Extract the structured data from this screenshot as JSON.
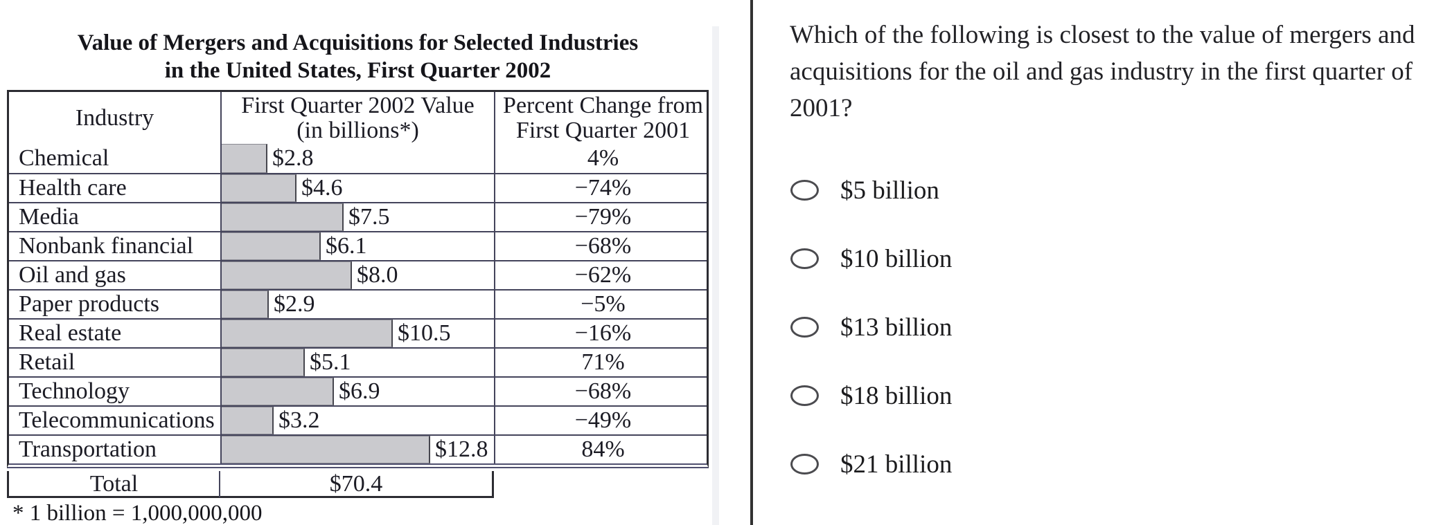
{
  "figure": {
    "title_line1": "Value of Mergers and Acquisitions for Selected Industries",
    "title_line2": "in the United States, First Quarter 2002",
    "table": {
      "header": {
        "industry": "Industry",
        "value_line1": "First Quarter 2002 Value",
        "value_line2": "(in billions*)",
        "change_line1": "Percent Change from",
        "change_line2": "First Quarter 2001"
      },
      "rows": [
        {
          "industry": "Chemical",
          "value_label": "$2.8",
          "value": 2.8,
          "pct_change": "4%"
        },
        {
          "industry": "Health care",
          "value_label": "$4.6",
          "value": 4.6,
          "pct_change": "−74%"
        },
        {
          "industry": "Media",
          "value_label": "$7.5",
          "value": 7.5,
          "pct_change": "−79%"
        },
        {
          "industry": "Nonbank financial",
          "value_label": "$6.1",
          "value": 6.1,
          "pct_change": "−68%"
        },
        {
          "industry": "Oil and gas",
          "value_label": "$8.0",
          "value": 8.0,
          "pct_change": "−62%"
        },
        {
          "industry": "Paper products",
          "value_label": "$2.9",
          "value": 2.9,
          "pct_change": "−5%"
        },
        {
          "industry": "Real estate",
          "value_label": "$10.5",
          "value": 10.5,
          "pct_change": "−16%"
        },
        {
          "industry": "Retail",
          "value_label": "$5.1",
          "value": 5.1,
          "pct_change": "71%"
        },
        {
          "industry": "Technology",
          "value_label": "$6.9",
          "value": 6.9,
          "pct_change": "−68%"
        },
        {
          "industry": "Telecommunications",
          "value_label": "$3.2",
          "value": 3.2,
          "pct_change": "−49%"
        },
        {
          "industry": "Transportation",
          "value_label": "$12.8",
          "value": 12.8,
          "pct_change": "84%"
        }
      ],
      "total_label": "Total",
      "total_value": "$70.4"
    },
    "footnote": "* 1 billion = 1,000,000,000"
  },
  "chart_data": {
    "type": "table",
    "title": "Value of Mergers and Acquisitions for Selected Industries in the United States, First Quarter 2002",
    "categories": [
      "Chemical",
      "Health care",
      "Media",
      "Nonbank financial",
      "Oil and gas",
      "Paper products",
      "Real estate",
      "Retail",
      "Technology",
      "Telecommunications",
      "Transportation"
    ],
    "series": [
      {
        "name": "First Quarter 2002 Value (in billions*)",
        "values": [
          2.8,
          4.6,
          7.5,
          6.1,
          8.0,
          2.9,
          10.5,
          5.1,
          6.9,
          3.2,
          12.8
        ]
      },
      {
        "name": "Percent Change from First Quarter 2001",
        "values": [
          4,
          -74,
          -79,
          -68,
          -62,
          -5,
          -16,
          71,
          -68,
          -49,
          84
        ]
      }
    ],
    "total_value_billions": 70.4,
    "footnote": "* 1 billion = 1,000,000,000",
    "bars": {
      "embedded_in_column": "First Quarter 2002 Value",
      "fill": "#c9c9cc",
      "axis_origin_billions": 0
    }
  },
  "question": {
    "lines": [
      "Which of the following is closest to the value of mergers and",
      "acquisitions for the oil and gas industry in the first quarter of",
      "2001?"
    ]
  },
  "options": [
    {
      "label": "$5 billion",
      "selected": false
    },
    {
      "label": "$10 billion",
      "selected": false
    },
    {
      "label": "$13 billion",
      "selected": false
    },
    {
      "label": "$18 billion",
      "selected": false
    },
    {
      "label": "$21 billion",
      "selected": false
    }
  ],
  "colors": {
    "bar_fill": "#c9c9cc",
    "table_border": "#2e2e34",
    "inner_border": "#45455c",
    "divider": "#323232",
    "text": "#1d1d26"
  }
}
